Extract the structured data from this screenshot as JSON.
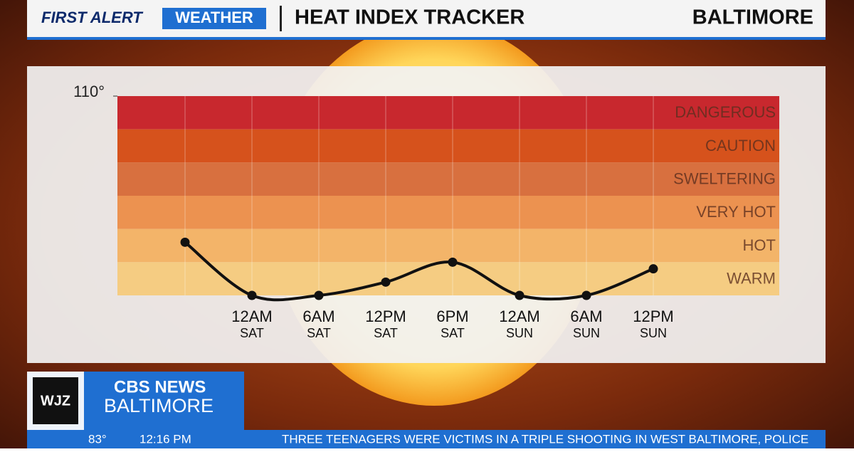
{
  "header": {
    "brand_first": "FIRST ALERT",
    "brand_second": "WEATHER",
    "title": "HEAT INDEX TRACKER",
    "location": "BALTIMORE"
  },
  "chart_data": {
    "type": "line",
    "categories": [
      null,
      "12AM",
      "6AM",
      "12PM",
      "6PM",
      "12AM",
      "6AM",
      "12PM"
    ],
    "days": [
      null,
      "SAT",
      "SAT",
      "SAT",
      "SAT",
      "SUN",
      "SUN",
      "SUN"
    ],
    "series": [
      {
        "color": "#111111",
        "values": [
          88,
          80,
          80,
          82,
          85,
          80,
          80,
          84
        ]
      }
    ],
    "ylim": [
      80,
      110
    ],
    "yticks": [
      {
        "value": 110,
        "label": "110°"
      }
    ],
    "bands": [
      {
        "name": "DANGEROUS",
        "color": "#c8282e",
        "range": [
          105,
          110
        ]
      },
      {
        "name": "CAUTION",
        "color": "#d6521c",
        "range": [
          100,
          105
        ]
      },
      {
        "name": "SWELTERING",
        "color": "#d8703f",
        "range": [
          95,
          100
        ]
      },
      {
        "name": "VERY HOT",
        "color": "#ec9250",
        "range": [
          90,
          95
        ]
      },
      {
        "name": "HOT",
        "color": "#f3b469",
        "range": [
          85,
          90
        ]
      },
      {
        "name": "WARM",
        "color": "#f5cc82",
        "range": [
          80,
          85
        ]
      }
    ]
  },
  "footer": {
    "station": "WJZ",
    "network": "CBS NEWS",
    "city": "BALTIMORE",
    "temperature": "83°",
    "time": "12:16 PM",
    "ticker": "THREE TEENAGERS WERE VICTIMS IN A TRIPLE SHOOTING IN WEST BALTIMORE, POLICE"
  }
}
